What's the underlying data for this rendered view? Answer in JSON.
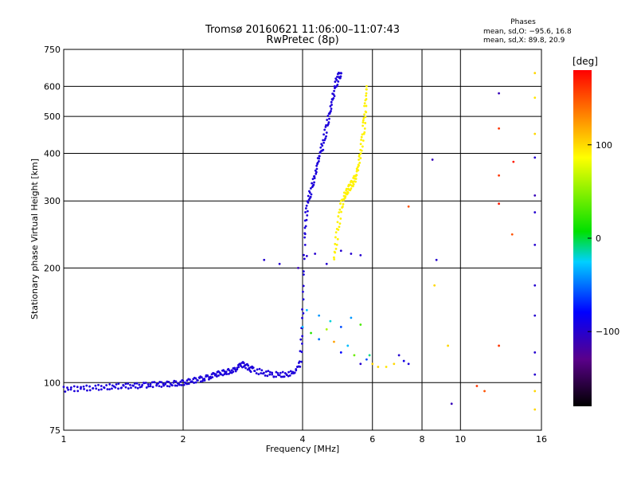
{
  "chart_data": {
    "type": "scatter",
    "title": "Tromsø 20160621 11:06:00–11:07:43",
    "subtitle": "RwPretec (8p)",
    "xlabel": "Frequency [MHz]",
    "ylabel": "Stationary phase Virtual Height [km]",
    "x_scale": "log",
    "y_scale": "log",
    "xlim": [
      1,
      16
    ],
    "ylim": [
      75,
      750
    ],
    "x_ticks": [
      "1",
      "2",
      "4",
      "6",
      "8",
      "10",
      "16"
    ],
    "y_ticks": [
      "75",
      "100",
      "200",
      "300",
      "400",
      "500",
      "600",
      "750"
    ],
    "grid": true,
    "phases_box": {
      "heading": "Phases",
      "line1": "mean, sd,O: −95.6, 16.8",
      "line2": "mean, sd,X:  89.8, 20.9"
    },
    "colorbar": {
      "unit": "[deg]",
      "range": [
        -180,
        180
      ],
      "tick_labels": [
        "100",
        "0",
        "−100"
      ],
      "tick_values": [
        100,
        0,
        -100
      ]
    },
    "o_mode_trace": {
      "phase_deg": -95.6,
      "points": [
        [
          1.0,
          96
        ],
        [
          1.1,
          96.5
        ],
        [
          1.2,
          97
        ],
        [
          1.3,
          97.5
        ],
        [
          1.4,
          98
        ],
        [
          1.5,
          98
        ],
        [
          1.6,
          98.5
        ],
        [
          1.7,
          99
        ],
        [
          1.8,
          99
        ],
        [
          1.9,
          99.5
        ],
        [
          2.0,
          100
        ],
        [
          2.1,
          101
        ],
        [
          2.2,
          102
        ],
        [
          2.3,
          103
        ],
        [
          2.4,
          105
        ],
        [
          2.5,
          106
        ],
        [
          2.6,
          107
        ],
        [
          2.7,
          108
        ],
        [
          2.8,
          112
        ],
        [
          2.9,
          110
        ],
        [
          3.0,
          108
        ],
        [
          3.2,
          106
        ],
        [
          3.4,
          105
        ],
        [
          3.6,
          105
        ],
        [
          3.8,
          106
        ],
        [
          3.95,
          112
        ],
        [
          4.0,
          150
        ],
        [
          4.05,
          240
        ],
        [
          4.1,
          290
        ],
        [
          4.2,
          320
        ],
        [
          4.3,
          350
        ],
        [
          4.4,
          390
        ],
        [
          4.5,
          420
        ],
        [
          4.6,
          470
        ],
        [
          4.7,
          520
        ],
        [
          4.8,
          580
        ],
        [
          4.9,
          630
        ],
        [
          5.0,
          650
        ]
      ]
    },
    "x_mode_trace": {
      "phase_deg": 89.8,
      "points": [
        [
          4.8,
          210
        ],
        [
          4.9,
          250
        ],
        [
          5.0,
          290
        ],
        [
          5.1,
          310
        ],
        [
          5.2,
          320
        ],
        [
          5.3,
          330
        ],
        [
          5.4,
          340
        ],
        [
          5.5,
          360
        ],
        [
          5.6,
          400
        ],
        [
          5.7,
          460
        ],
        [
          5.75,
          520
        ],
        [
          5.8,
          600
        ]
      ]
    },
    "scattered_points": [
      [
        3.2,
        210,
        -100
      ],
      [
        3.5,
        205,
        -100
      ],
      [
        3.9,
        200,
        -110
      ],
      [
        4.1,
        215,
        -100
      ],
      [
        4.3,
        218,
        -100
      ],
      [
        4.6,
        205,
        -100
      ],
      [
        5.0,
        222,
        -100
      ],
      [
        5.3,
        218,
        -100
      ],
      [
        5.6,
        216,
        -100
      ],
      [
        4.0,
        140,
        -30
      ],
      [
        4.2,
        135,
        20
      ],
      [
        4.4,
        130,
        -50
      ],
      [
        4.6,
        138,
        60
      ],
      [
        4.8,
        128,
        120
      ],
      [
        5.0,
        120,
        -80
      ],
      [
        5.2,
        125,
        -30
      ],
      [
        5.4,
        118,
        40
      ],
      [
        5.6,
        112,
        -100
      ],
      [
        5.8,
        115,
        -60
      ],
      [
        6.0,
        112,
        100
      ],
      [
        6.2,
        110,
        100
      ],
      [
        6.5,
        110,
        95
      ],
      [
        6.8,
        112,
        100
      ],
      [
        7.0,
        118,
        -100
      ],
      [
        7.2,
        114,
        -90
      ],
      [
        7.4,
        112,
        -95
      ],
      [
        4.1,
        155,
        -30
      ],
      [
        4.4,
        150,
        -40
      ],
      [
        4.7,
        145,
        -20
      ],
      [
        5.0,
        140,
        -60
      ],
      [
        5.3,
        148,
        -40
      ],
      [
        5.6,
        142,
        30
      ],
      [
        5.9,
        118,
        -10
      ],
      [
        8.5,
        385,
        -110
      ],
      [
        8.7,
        210,
        -100
      ],
      [
        8.6,
        180,
        100
      ],
      [
        9.3,
        125,
        100
      ],
      [
        9.5,
        88,
        -110
      ],
      [
        7.4,
        290,
        150
      ],
      [
        11.0,
        98,
        160
      ],
      [
        11.5,
        95,
        150
      ],
      [
        12.5,
        575,
        -110
      ],
      [
        12.5,
        465,
        160
      ],
      [
        12.5,
        350,
        160
      ],
      [
        12.5,
        295,
        170
      ],
      [
        12.5,
        125,
        160
      ],
      [
        13.5,
        245,
        150
      ],
      [
        13.6,
        380,
        170
      ],
      [
        15.4,
        650,
        100
      ],
      [
        15.4,
        560,
        95
      ],
      [
        15.4,
        450,
        100
      ],
      [
        15.4,
        390,
        -100
      ],
      [
        15.4,
        310,
        -110
      ],
      [
        15.4,
        280,
        -100
      ],
      [
        15.4,
        230,
        -100
      ],
      [
        15.4,
        180,
        -100
      ],
      [
        15.4,
        150,
        -100
      ],
      [
        15.4,
        120,
        -100
      ],
      [
        15.4,
        105,
        -100
      ],
      [
        15.4,
        95,
        100
      ],
      [
        15.4,
        85,
        100
      ]
    ]
  }
}
